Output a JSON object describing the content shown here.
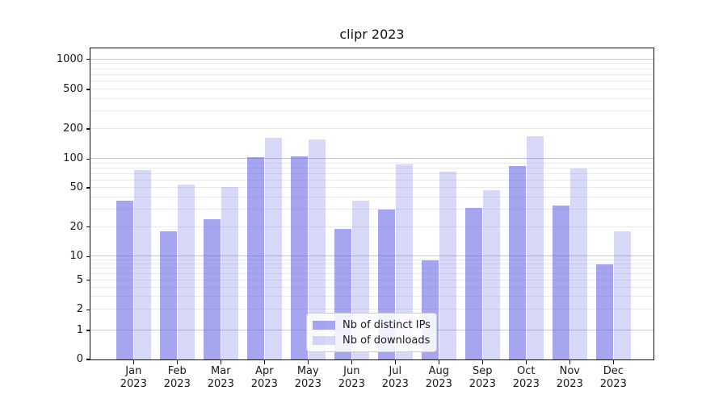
{
  "title": "clipr 2023",
  "chart_data": {
    "type": "bar",
    "title": "clipr 2023",
    "categories": [
      "Jan 2023",
      "Feb 2023",
      "Mar 2023",
      "Apr 2023",
      "May 2023",
      "Jun 2023",
      "Jul 2023",
      "Aug 2023",
      "Sep 2023",
      "Oct 2023",
      "Nov 2023",
      "Dec 2023"
    ],
    "series": [
      {
        "name": "Nb of distinct IPs",
        "color": "rgba(99,99,228,0.57)",
        "values": [
          37,
          18,
          24,
          104,
          107,
          19,
          30,
          9,
          31,
          85,
          33,
          8
        ]
      },
      {
        "name": "Nb of downloads",
        "color": "rgba(99,99,228,0.25)",
        "values": [
          76,
          54,
          51,
          163,
          158,
          37,
          88,
          74,
          47,
          170,
          79,
          18
        ]
      }
    ],
    "y_axis": {
      "scale": "symlog",
      "ylim": [
        0,
        1120
      ],
      "tick_labels": [
        "0",
        "1",
        "2",
        "5",
        "10",
        "20",
        "50",
        "100",
        "200",
        "500",
        "1000"
      ],
      "ticks": [
        {
          "v": 0,
          "f": 0.0
        },
        {
          "v": 1,
          "f": 0.0933
        },
        {
          "v": 2,
          "f": 0.1598
        },
        {
          "v": 5,
          "f": 0.2546
        },
        {
          "v": 10,
          "f": 0.3308
        },
        {
          "v": 20,
          "f": 0.4256
        },
        {
          "v": 50,
          "f": 0.5518
        },
        {
          "v": 100,
          "f": 0.6443
        },
        {
          "v": 200,
          "f": 0.7409
        },
        {
          "v": 500,
          "f": 0.8679
        },
        {
          "v": 1000,
          "f": 0.965
        }
      ],
      "minor_gridlines": [
        3,
        4,
        6,
        7,
        8,
        9,
        30,
        40,
        60,
        70,
        80,
        90,
        300,
        400,
        600,
        700,
        800,
        900
      ],
      "decade_gridlines": [
        1,
        10,
        100,
        1000
      ]
    },
    "x_axis": {
      "label_line2": "2023"
    },
    "legend": {
      "position": "lower center",
      "entries": [
        "Nb of distinct IPs",
        "Nb of downloads"
      ]
    },
    "grid": true
  },
  "colors": {
    "bar_dark": "rgba(99,99,228,0.57)",
    "bar_light": "rgba(99,99,228,0.25)",
    "grid_minor": "#ebebeb",
    "grid_major": "#c7c7c7",
    "spine": "#111111",
    "text": "#1a1a1a",
    "legend_border": "#cccccc"
  }
}
